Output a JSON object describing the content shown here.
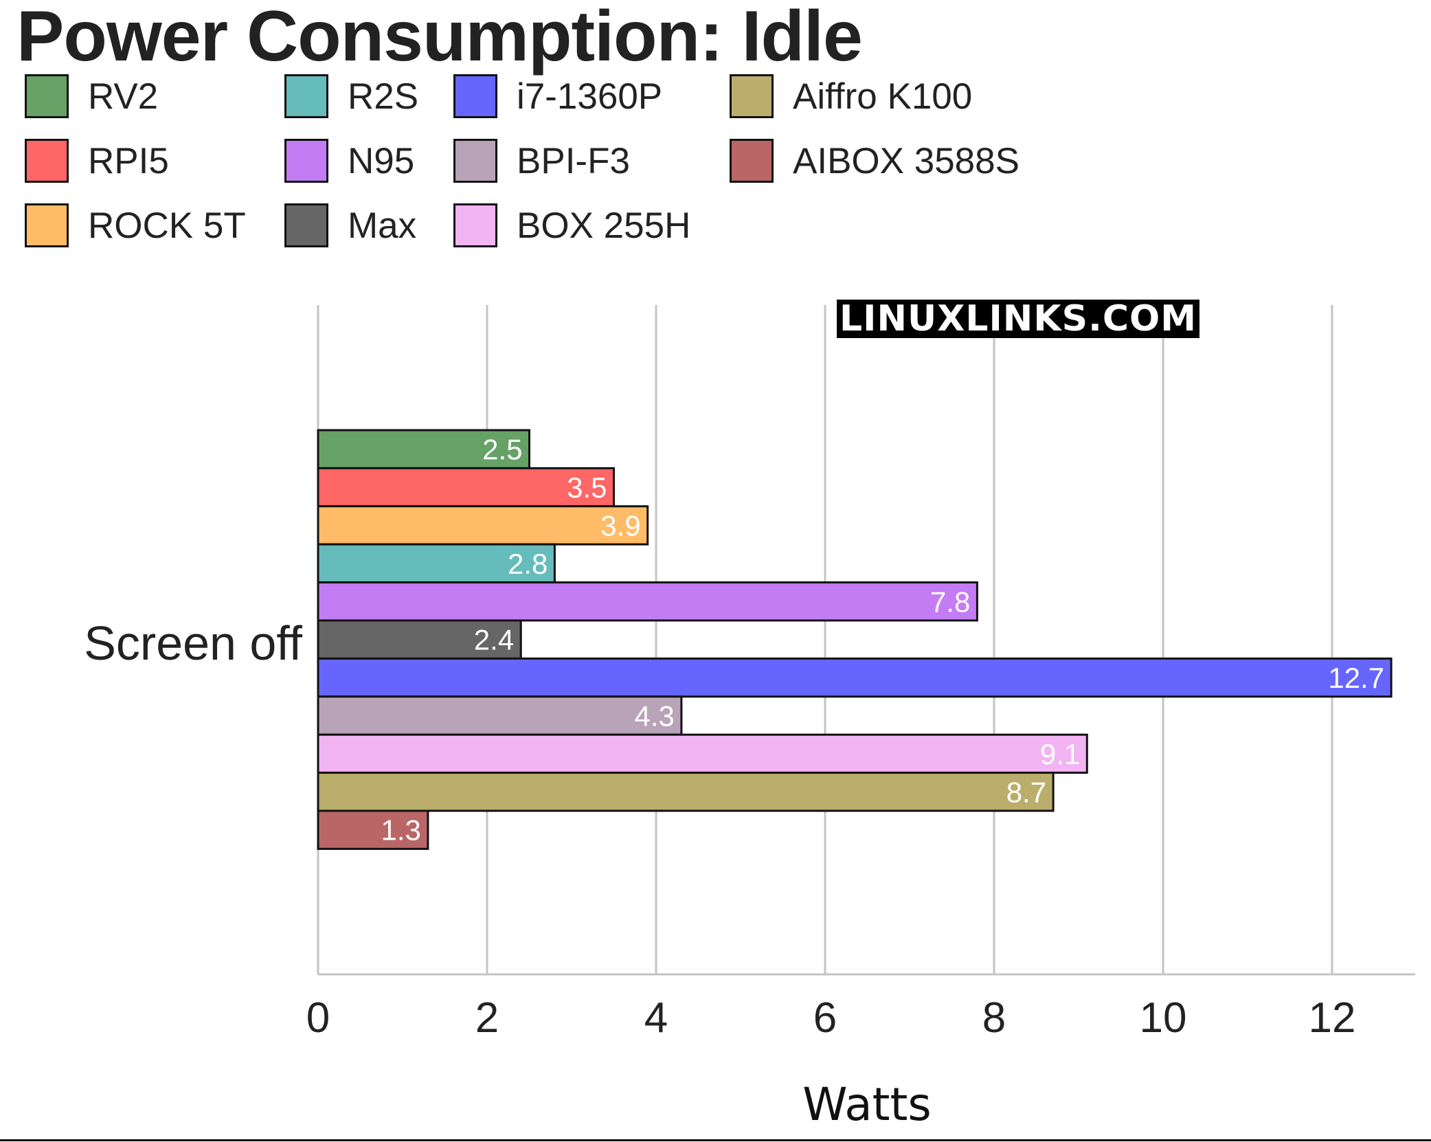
{
  "chart_data": {
    "type": "bar",
    "orientation": "horizontal",
    "title": "Power Consumption: Idle",
    "xlabel": "Watts",
    "ylabel": "",
    "categories": [
      "Screen off"
    ],
    "xlim": [
      0,
      13
    ],
    "xticks": [
      0,
      2,
      4,
      6,
      8,
      10,
      12
    ],
    "grid": true,
    "legend_position": "top",
    "series": [
      {
        "name": "RV2",
        "values": [
          2.5
        ],
        "color": "#66a266"
      },
      {
        "name": "RPI5",
        "values": [
          3.5
        ],
        "color": "#ff6666"
      },
      {
        "name": "ROCK 5T",
        "values": [
          3.9
        ],
        "color": "#ffbb66"
      },
      {
        "name": "R2S",
        "values": [
          2.8
        ],
        "color": "#66bbbb"
      },
      {
        "name": "N95",
        "values": [
          7.8
        ],
        "color": "#c47cf5"
      },
      {
        "name": "Max",
        "values": [
          2.4
        ],
        "color": "#666666"
      },
      {
        "name": "i7-1360P",
        "values": [
          12.7
        ],
        "color": "#6666ff"
      },
      {
        "name": "BPI-F3",
        "values": [
          4.3
        ],
        "color": "#b9a3b9"
      },
      {
        "name": "BOX 255H",
        "values": [
          9.1
        ],
        "color": "#f3b4f3"
      },
      {
        "name": "Aiffro K100",
        "values": [
          8.7
        ],
        "color": "#bbae6d"
      },
      {
        "name": "AIBOX 3588S",
        "values": [
          1.3
        ],
        "color": "#ba6666"
      }
    ]
  },
  "watermark": "LINUXLINKS.COM"
}
